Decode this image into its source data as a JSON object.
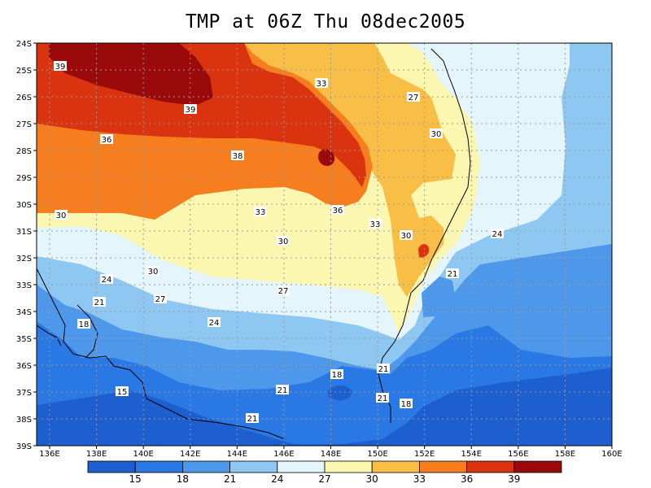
{
  "title": "TMP at 06Z Thu 08dec2005",
  "axes": {
    "lat_ticks": [
      "24S",
      "25S",
      "26S",
      "27S",
      "28S",
      "29S",
      "30S",
      "31S",
      "32S",
      "33S",
      "34S",
      "35S",
      "36S",
      "37S",
      "38S",
      "39S"
    ],
    "lon_ticks": [
      "136E",
      "138E",
      "140E",
      "142E",
      "144E",
      "146E",
      "148E",
      "150E",
      "152E",
      "154E",
      "156E",
      "158E",
      "160E"
    ]
  },
  "colorbar": {
    "colors": [
      "#1e5fcf",
      "#2a78e3",
      "#4d98ea",
      "#8ec8f2",
      "#e4f5fb",
      "#fbf6b0",
      "#f9be45",
      "#f77e1e",
      "#d9330f",
      "#9a0a0a"
    ],
    "labels": [
      "15",
      "18",
      "21",
      "24",
      "27",
      "30",
      "33",
      "36",
      "39"
    ]
  },
  "contour_labels": [
    "39",
    "39",
    "33",
    "27",
    "36",
    "38",
    "30",
    "30",
    "33",
    "36",
    "33",
    "30",
    "24",
    "30",
    "30",
    "24",
    "21",
    "27",
    "21",
    "27",
    "24",
    "18",
    "18",
    "21",
    "21",
    "18",
    "21",
    "15",
    "21"
  ],
  "colors": {
    "grid": "#9a9a9a",
    "frame": "#000000"
  }
}
